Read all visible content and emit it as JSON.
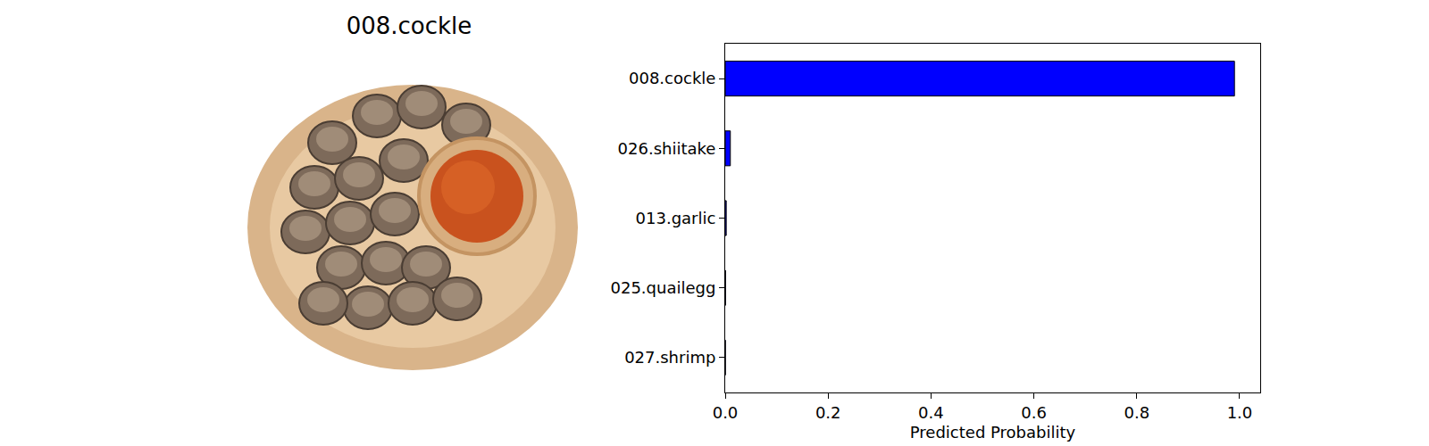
{
  "image": {
    "title": "008.cockle"
  },
  "chart_data": {
    "type": "bar",
    "orientation": "horizontal",
    "categories": [
      "008.cockle",
      "026.shiitake",
      "013.garlic",
      "025.quailegg",
      "027.shrimp"
    ],
    "values": [
      0.99,
      0.01,
      0.002,
      0.0005,
      0.0003
    ],
    "color": "#0000ff",
    "x_label": "Predicted Probability",
    "xlim": [
      0,
      1.04
    ],
    "xticks": [
      {
        "value": 0,
        "label": "0.0"
      },
      0.2,
      0.4,
      0.6,
      0.8,
      {
        "value": 1,
        "label": "1.0"
      }
    ],
    "grid": false
  }
}
